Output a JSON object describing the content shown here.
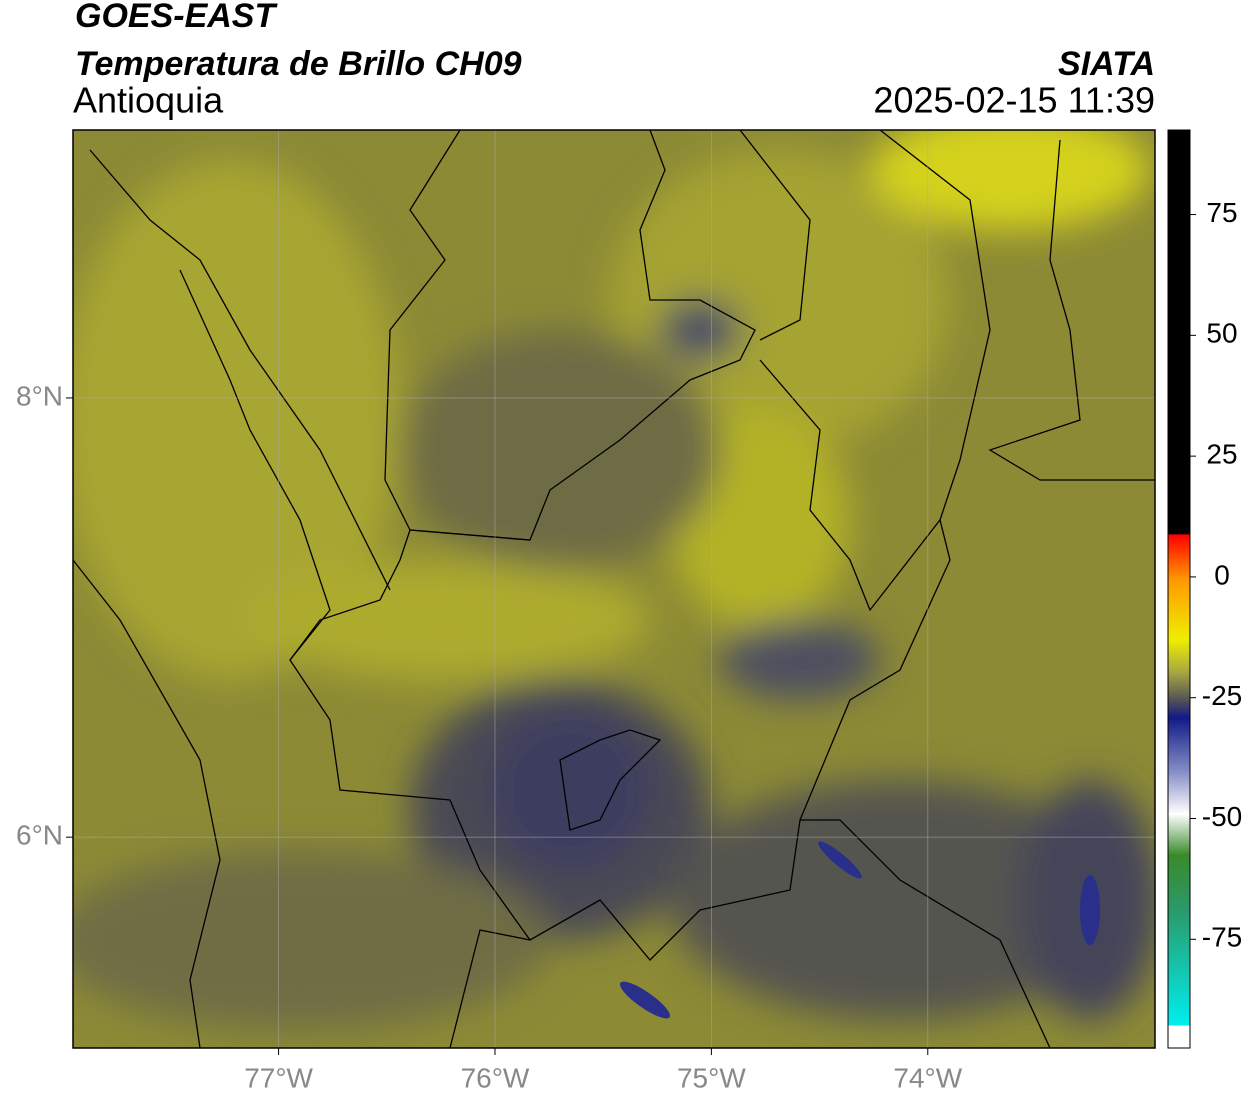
{
  "header": {
    "title": "GOES-EAST",
    "subtitle": "Temperatura de Brillo CH09",
    "region": "Antioquia",
    "source": "SIATA",
    "timestamp": "2025-02-15 11:39"
  },
  "map": {
    "xlim": [
      -77.95,
      -72.95
    ],
    "ylim": [
      5.04,
      9.22
    ],
    "xticks": [
      {
        "value": -77,
        "label": "77°W"
      },
      {
        "value": -76,
        "label": "76°W"
      },
      {
        "value": -75,
        "label": "75°W"
      },
      {
        "value": -74,
        "label": "74°W"
      }
    ],
    "yticks": [
      {
        "value": 8,
        "label": "8°N"
      },
      {
        "value": 6,
        "label": "6°N"
      }
    ],
    "grid": true
  },
  "colorbar": {
    "lim": [
      -97.5,
      92.5
    ],
    "ticks": [
      75,
      50,
      25,
      0,
      -25,
      -50,
      -75
    ]
  }
}
